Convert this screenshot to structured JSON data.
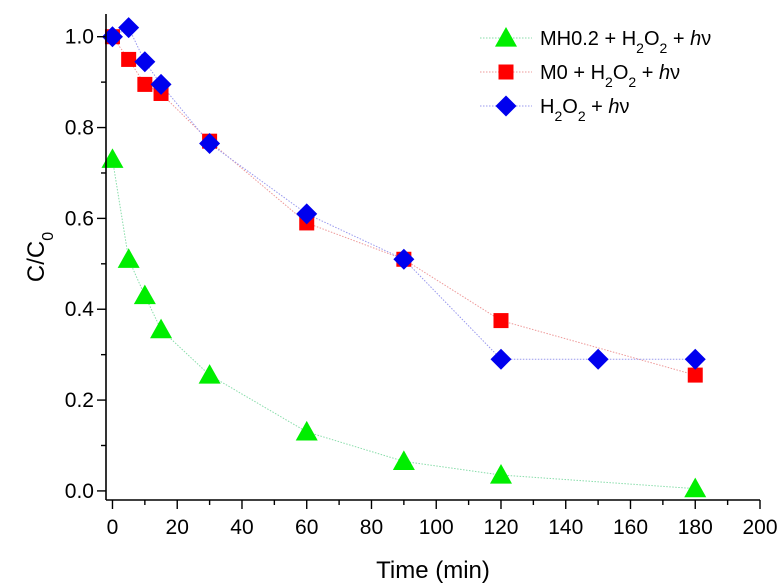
{
  "chart_data": {
    "type": "scatter",
    "xlabel": "Time (min)",
    "ylabel": {
      "main": "C/C",
      "sub": "0"
    },
    "xlim": [
      -2,
      200
    ],
    "ylim": [
      -0.02,
      1.05
    ],
    "xticks": [
      0,
      20,
      40,
      60,
      80,
      100,
      120,
      140,
      160,
      180,
      200
    ],
    "yticks": [
      "0.0",
      "0.2",
      "0.4",
      "0.6",
      "0.8",
      "1.0"
    ],
    "legend_position": "top-right",
    "series": [
      {
        "name": {
          "a": "MH0.2 + H",
          "s1": "2",
          "b": "O",
          "s2": "2",
          "c": " + ",
          "h": "h",
          "nu": "ν"
        },
        "marker": "triangle",
        "color": "#00ee00",
        "line_color": "#88ddaa",
        "x": [
          0,
          5,
          10,
          15,
          30,
          60,
          90,
          120,
          180
        ],
        "y": [
          0.73,
          0.51,
          0.43,
          0.355,
          0.255,
          0.13,
          0.065,
          0.035,
          0.005
        ]
      },
      {
        "name": {
          "a": "M0 + H",
          "s1": "2",
          "b": "O",
          "s2": "2",
          "c": " + ",
          "h": "h",
          "nu": "ν"
        },
        "marker": "square",
        "color": "#ff0000",
        "line_color": "#ee9999",
        "x": [
          0,
          5,
          10,
          15,
          30,
          60,
          90,
          120,
          180
        ],
        "y": [
          1.0,
          0.95,
          0.895,
          0.875,
          0.77,
          0.59,
          0.51,
          0.375,
          0.255
        ]
      },
      {
        "name": {
          "a": "H",
          "s1": "2",
          "b": "O",
          "s2": "2",
          "c": " + ",
          "h": "h",
          "nu": "ν"
        },
        "marker": "diamond",
        "color": "#0000ee",
        "line_color": "#9999ee",
        "x": [
          0,
          5,
          10,
          15,
          30,
          60,
          90,
          120,
          150,
          180
        ],
        "y": [
          1.0,
          1.02,
          0.945,
          0.895,
          0.765,
          0.61,
          0.51,
          0.29,
          0.29,
          0.29
        ]
      }
    ]
  }
}
